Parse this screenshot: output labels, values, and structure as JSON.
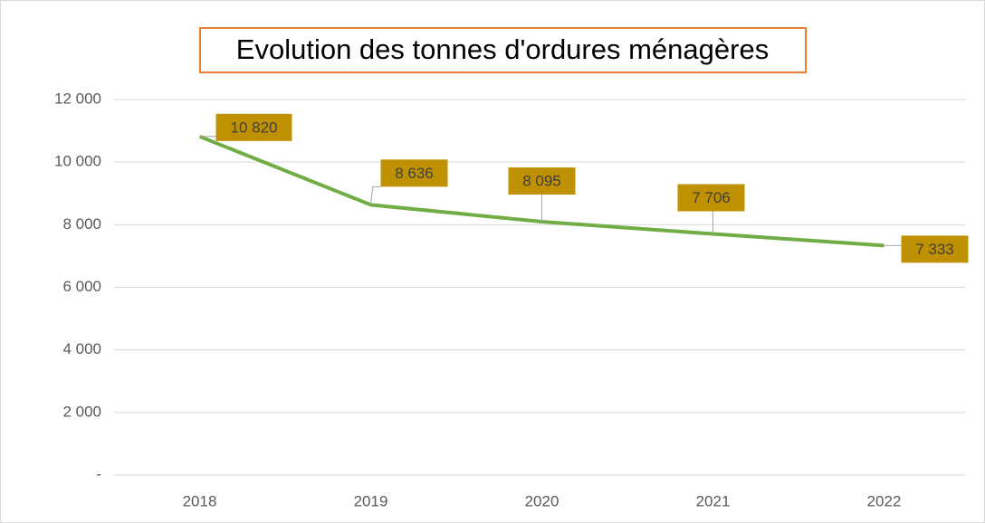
{
  "chart_data": {
    "type": "line",
    "title": "Evolution des tonnes d'ordures ménagères",
    "categories": [
      "2018",
      "2019",
      "2020",
      "2021",
      "2022"
    ],
    "series": [
      {
        "name": "Tonnes",
        "color": "#70ad47",
        "values": [
          10820,
          8636,
          8095,
          7706,
          7333
        ],
        "value_labels": [
          "10 820",
          "8 636",
          "8 095",
          "7 706",
          "7 333"
        ]
      }
    ],
    "ylim": [
      0,
      12000
    ],
    "yticks": [
      {
        "value": 0,
        "label": "-"
      },
      {
        "value": 2000,
        "label": "2 000"
      },
      {
        "value": 4000,
        "label": "4 000"
      },
      {
        "value": 6000,
        "label": "6 000"
      },
      {
        "value": 8000,
        "label": "8 000"
      },
      {
        "value": 10000,
        "label": "10 000"
      },
      {
        "value": 12000,
        "label": "12 000"
      }
    ],
    "grid": true,
    "label_color": "#bf9000"
  }
}
